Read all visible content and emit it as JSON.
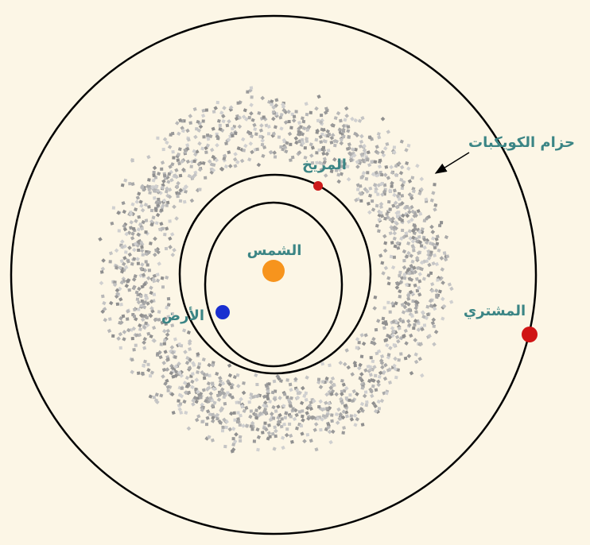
{
  "labels": {
    "sun": "الشمس",
    "earth": "الأرض",
    "mars": "المريخ",
    "jupiter": "المشتري",
    "asteroid_belt": "حزام الكويكبات"
  }
}
